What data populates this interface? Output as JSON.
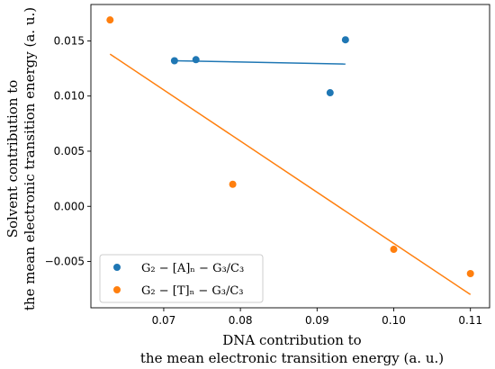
{
  "chart_data": {
    "type": "scatter",
    "xlabel_lines": [
      "DNA contribution to",
      "the mean electronic transition energy (a. u.)"
    ],
    "ylabel_lines": [
      "Solvent contribution to",
      "the mean electronic transition energy (a. u.)"
    ],
    "xlim": [
      0.0605,
      0.1125
    ],
    "ylim": [
      -0.0092,
      0.0183
    ],
    "x_ticks": [
      0.07,
      0.08,
      0.09,
      0.1,
      0.11
    ],
    "x_tick_labels": [
      "0.07",
      "0.08",
      "0.09",
      "0.10",
      "0.11"
    ],
    "y_ticks": [
      -0.005,
      0.0,
      0.005,
      0.01,
      0.015
    ],
    "y_tick_labels": [
      "−0.005",
      "0.000",
      "0.005",
      "0.010",
      "0.015"
    ],
    "legend_position": "lower-left",
    "series": [
      {
        "name": "G₂ − [A]ₙ − G₃/C₃",
        "color": "#1f77b4",
        "x": [
          0.0714,
          0.0742,
          0.0917,
          0.0937
        ],
        "y": [
          0.0132,
          0.0133,
          0.0103,
          0.0151
        ],
        "fit": [
          [
            0.0714,
            0.0132
          ],
          [
            0.0937,
            0.0129
          ]
        ]
      },
      {
        "name": "G₂ − [T]ₙ − G₃/C₃",
        "color": "#ff7f0e",
        "x": [
          0.063,
          0.079,
          0.1,
          0.11
        ],
        "y": [
          0.0169,
          0.002,
          -0.0039,
          -0.0061
        ],
        "fit": [
          [
            0.063,
            0.0138
          ],
          [
            0.11,
            -0.008
          ]
        ]
      }
    ]
  }
}
